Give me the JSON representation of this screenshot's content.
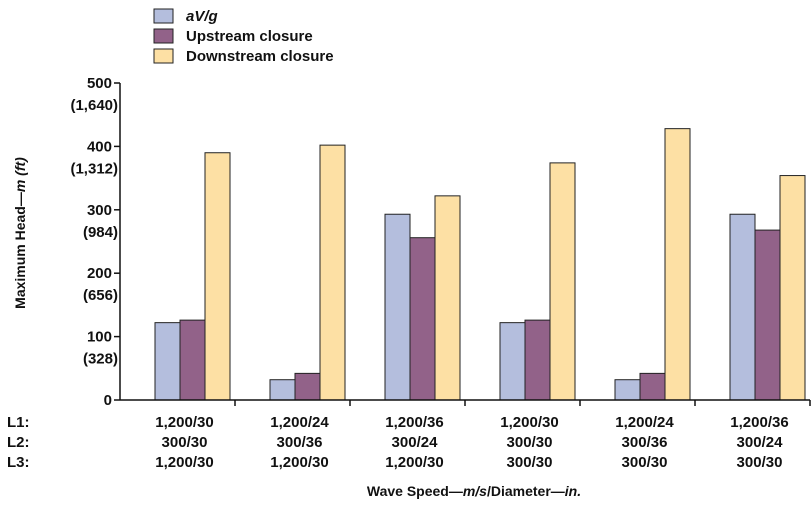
{
  "chart_data": {
    "type": "bar",
    "categories": [
      {
        "L1": "1,200/30",
        "L2": "300/30",
        "L3": "1,200/30"
      },
      {
        "L1": "1,200/24",
        "L2": "300/36",
        "L3": "1,200/30"
      },
      {
        "L1": "1,200/36",
        "L2": "300/24",
        "L3": "1,200/30"
      },
      {
        "L1": "1,200/30",
        "L2": "300/30",
        "L3": "300/30"
      },
      {
        "L1": "1,200/24",
        "L2": "300/36",
        "L3": "300/30"
      },
      {
        "L1": "1,200/36",
        "L2": "300/24",
        "L3": "300/30"
      }
    ],
    "row_labels": [
      "L1:",
      "L2:",
      "L3:"
    ],
    "series": [
      {
        "name": "aV/g",
        "color": "#b4bedd",
        "values": [
          122,
          32,
          293,
          122,
          32,
          293
        ]
      },
      {
        "name": "Upstream closure",
        "color": "#926289",
        "values": [
          126,
          42,
          256,
          126,
          42,
          268
        ]
      },
      {
        "name": "Downstream closure",
        "color": "#fde0a4",
        "values": [
          390,
          402,
          322,
          374,
          428,
          354
        ]
      }
    ],
    "ylim": [
      0,
      500
    ],
    "yticks": [
      {
        "value": 0,
        "label": "0",
        "sub": ""
      },
      {
        "value": 100,
        "label": "100",
        "sub": "(328)"
      },
      {
        "value": 200,
        "label": "200",
        "sub": "(656)"
      },
      {
        "value": 300,
        "label": "300",
        "sub": "(984)"
      },
      {
        "value": 400,
        "label": "400",
        "sub": "(1,312)"
      },
      {
        "value": 500,
        "label": "500",
        "sub": "(1,640)"
      }
    ],
    "ylabel": {
      "plain": "Maximum Head—",
      "italic": "m (ft)"
    },
    "xlabel": {
      "part1": "Wave Speed—",
      "part2": "m/s",
      "part3": "/Diameter—",
      "part4": "in."
    },
    "legend": {
      "position": "top-left"
    },
    "grid": false
  }
}
